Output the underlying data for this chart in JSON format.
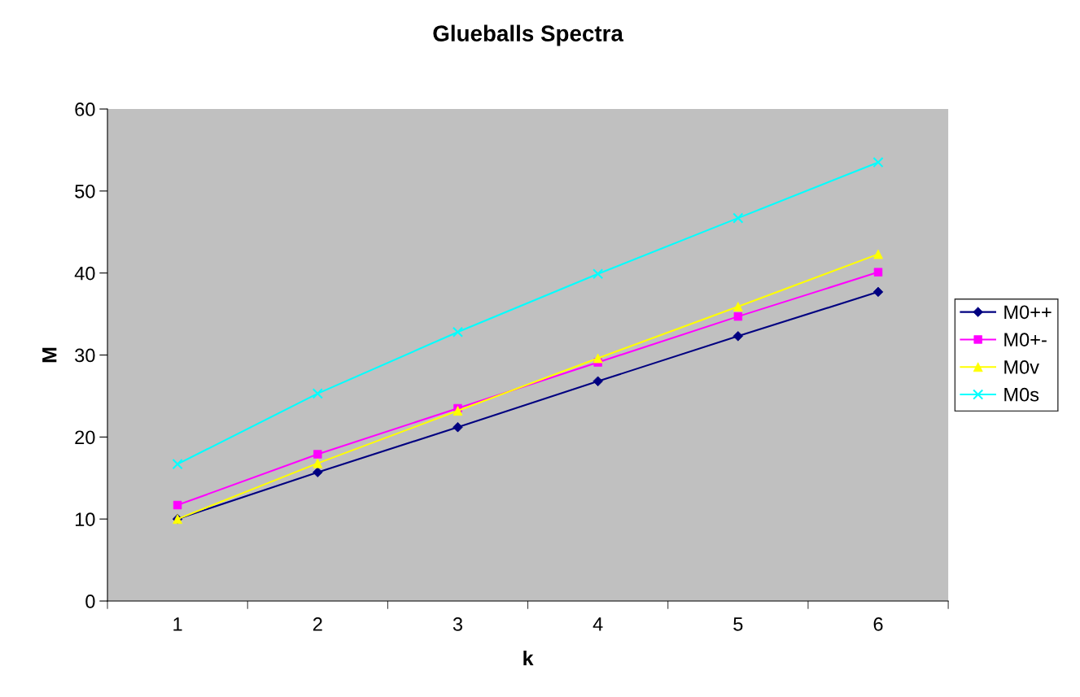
{
  "chart_data": {
    "type": "line",
    "title": "Glueballs Spectra",
    "xlabel": "k",
    "ylabel": "M",
    "categories": [
      "1",
      "2",
      "3",
      "4",
      "5",
      "6"
    ],
    "series": [
      {
        "name": "M0++",
        "color": "#000080",
        "marker": "diamond",
        "values": [
          10.0,
          15.7,
          21.2,
          26.8,
          32.3,
          37.7
        ]
      },
      {
        "name": "M0+-",
        "color": "#ff00ff",
        "marker": "square",
        "values": [
          11.7,
          17.9,
          23.5,
          29.1,
          34.7,
          40.1
        ]
      },
      {
        "name": "M0v",
        "color": "#ffff00",
        "marker": "triangle",
        "values": [
          10.0,
          16.8,
          23.2,
          29.6,
          35.9,
          42.3
        ]
      },
      {
        "name": "M0s",
        "color": "#00ffff",
        "marker": "cross",
        "values": [
          16.7,
          25.3,
          32.8,
          39.9,
          46.7,
          53.5
        ]
      }
    ],
    "ylim": [
      0,
      60
    ],
    "yticks": [
      0,
      10,
      20,
      30,
      40,
      50,
      60
    ],
    "grid": false,
    "legend": "right",
    "line_style": "solid"
  }
}
